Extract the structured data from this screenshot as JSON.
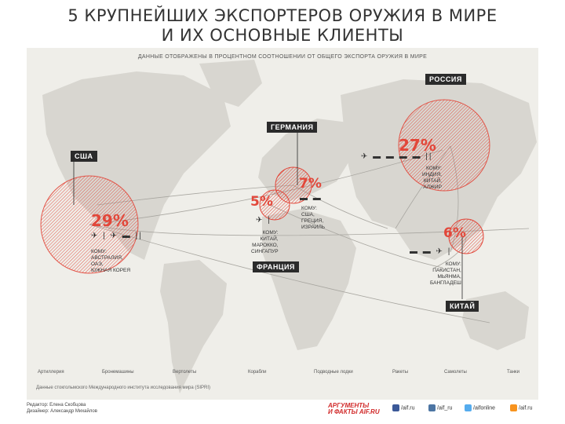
{
  "title": {
    "line1": "5 КРУПНЕЙШИХ ЭКСПОРТЕРОВ ОРУЖИЯ В МИРЕ",
    "line2": "И ИХ ОСНОВНЫЕ КЛИЕНТЫ"
  },
  "subtitle": "ДАННЫЕ ОТОБРАЖЕНЫ В ПРОЦЕНТНОМ СООТНОШЕНИИ ОТ ОБЩЕГО ЭКСПОРТА ОРУЖИЯ В МИРЕ",
  "exporters": {
    "russia": {
      "name": "РОССИЯ",
      "percent": "27%",
      "clients": [
        "КОМУ:",
        "ИНДИЯ,",
        "КИТАЙ,",
        "АЛЖИР"
      ]
    },
    "germany": {
      "name": "ГЕРМАНИЯ",
      "percent": "7%",
      "clients": [
        "КОМУ:",
        "США,",
        "ГРЕЦИЯ,",
        "ИЗРАИЛЬ"
      ]
    },
    "usa": {
      "name": "США",
      "percent": "29%",
      "clients": [
        "КОМУ:",
        "АВСТРАЛИЯ,",
        "ОАЭ,",
        "ЮЖНАЯ КОРЕЯ"
      ]
    },
    "france": {
      "name": "ФРАНЦИЯ",
      "percent": "5%",
      "clients": [
        "КОМУ:",
        "КИТАЙ,",
        "МАРОККО,",
        "СИНГАПУР"
      ]
    },
    "china": {
      "name": "КИТАЙ",
      "percent": "6%",
      "clients": [
        "КОМУ:",
        "ПАКИСТАН,",
        "МЬЯНМА,",
        "БАНГЛАДЕШ"
      ]
    }
  },
  "legend": {
    "items": [
      "Артиллерия",
      "Бронемашины",
      "Вертолеты",
      "Корабли",
      "Подводные лодки",
      "Ракеты",
      "Самолеты",
      "Танки"
    ]
  },
  "source": "Данные стокгольмского Международного института исследования мира (SIPRI)",
  "credits": {
    "editor": "Редактор: Елена Скобцова",
    "designer": "Дизайнер: Александр Михайлов"
  },
  "logo": {
    "line1": "АРГУМЕНТЫ",
    "line2": "И ФАКТЫ AIF.RU"
  },
  "social": [
    "/aif.ru",
    "/aif_ru",
    "/aifonline",
    "/aif.ru"
  ],
  "colors": {
    "accent": "#e2473a",
    "land": "#d8d6d0",
    "sea": "#efeee9",
    "tag": "#2b2b2b"
  }
}
